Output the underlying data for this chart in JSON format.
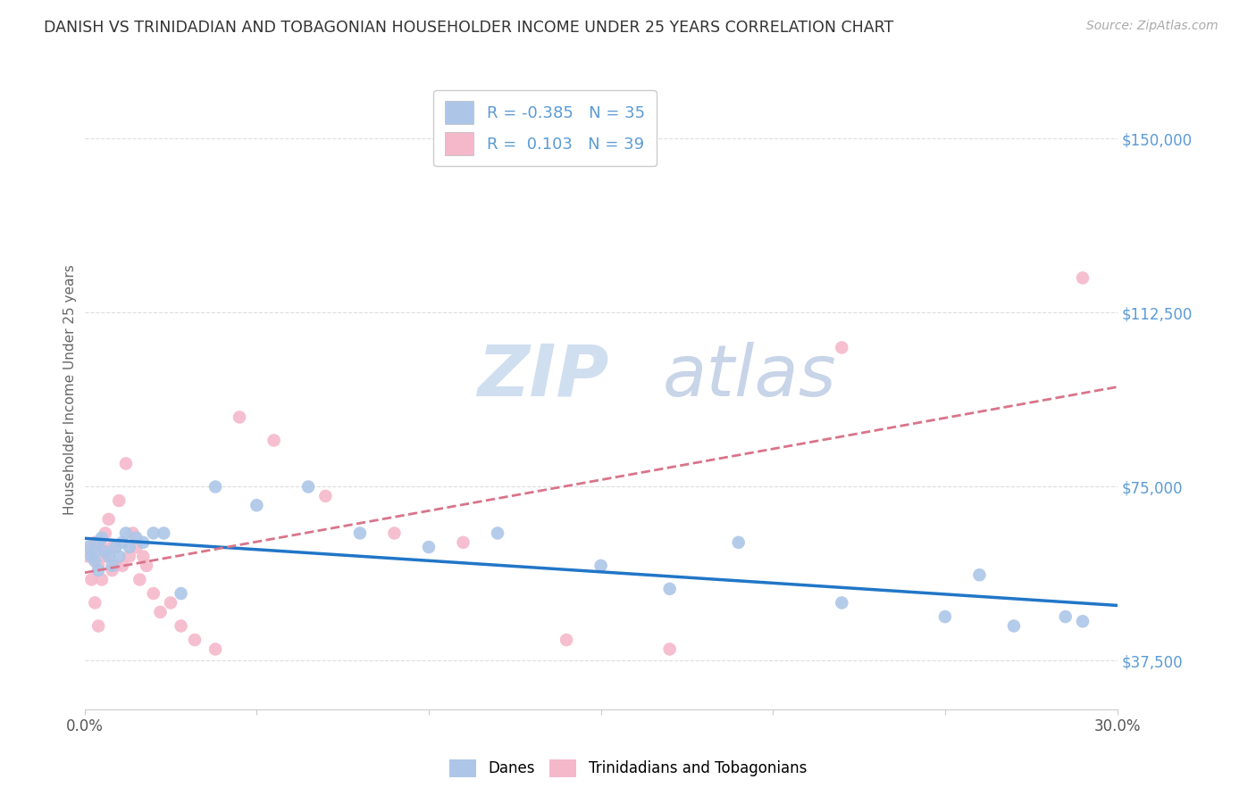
{
  "title": "DANISH VS TRINIDADIAN AND TOBAGONIAN HOUSEHOLDER INCOME UNDER 25 YEARS CORRELATION CHART",
  "source": "Source: ZipAtlas.com",
  "ylabel": "Householder Income Under 25 years",
  "legend_danes": "Danes",
  "legend_tnt": "Trinidadians and Tobagonians",
  "r_danes": -0.385,
  "n_danes": 35,
  "r_tnt": 0.103,
  "n_tnt": 39,
  "blue_color": "#adc6e8",
  "pink_color": "#f5b8cb",
  "blue_line_color": "#2176c7",
  "pink_line_color": "#d9748a",
  "title_color": "#333333",
  "axis_label_color": "#666666",
  "right_label_color": "#5b9bd5",
  "watermark_color": "#d0dff0",
  "background_color": "#ffffff",
  "grid_color": "#dddddd",
  "xlim": [
    0.0,
    0.3
  ],
  "ylim": [
    27000,
    165000
  ],
  "ytick_labels": [
    "$37,500",
    "$75,000",
    "$112,500",
    "$150,000"
  ],
  "ytick_values": [
    37500,
    75000,
    112500,
    150000
  ],
  "danes_x": [
    0.001,
    0.002,
    0.003,
    0.003,
    0.004,
    0.004,
    0.005,
    0.006,
    0.007,
    0.008,
    0.009,
    0.01,
    0.011,
    0.012,
    0.013,
    0.015,
    0.017,
    0.02,
    0.023,
    0.028,
    0.038,
    0.05,
    0.065,
    0.08,
    0.1,
    0.12,
    0.15,
    0.17,
    0.19,
    0.22,
    0.25,
    0.26,
    0.27,
    0.285,
    0.29
  ],
  "danes_y": [
    62000,
    60000,
    59000,
    61000,
    57000,
    63000,
    64000,
    61000,
    60000,
    58000,
    62000,
    60000,
    63000,
    65000,
    62000,
    64000,
    63000,
    65000,
    65000,
    52000,
    75000,
    71000,
    75000,
    65000,
    62000,
    65000,
    58000,
    53000,
    63000,
    50000,
    47000,
    56000,
    45000,
    47000,
    46000
  ],
  "tnt_x": [
    0.001,
    0.002,
    0.002,
    0.003,
    0.003,
    0.004,
    0.004,
    0.005,
    0.005,
    0.006,
    0.006,
    0.007,
    0.008,
    0.008,
    0.009,
    0.01,
    0.011,
    0.012,
    0.013,
    0.014,
    0.015,
    0.016,
    0.017,
    0.018,
    0.02,
    0.022,
    0.025,
    0.028,
    0.032,
    0.038,
    0.045,
    0.055,
    0.07,
    0.09,
    0.11,
    0.14,
    0.17,
    0.22,
    0.29
  ],
  "tnt_y": [
    60000,
    62000,
    55000,
    63000,
    50000,
    58000,
    45000,
    62000,
    55000,
    65000,
    60000,
    68000,
    62000,
    57000,
    58000,
    72000,
    58000,
    80000,
    60000,
    65000,
    62000,
    55000,
    60000,
    58000,
    52000,
    48000,
    50000,
    45000,
    42000,
    40000,
    90000,
    85000,
    73000,
    65000,
    63000,
    42000,
    40000,
    105000,
    120000
  ]
}
